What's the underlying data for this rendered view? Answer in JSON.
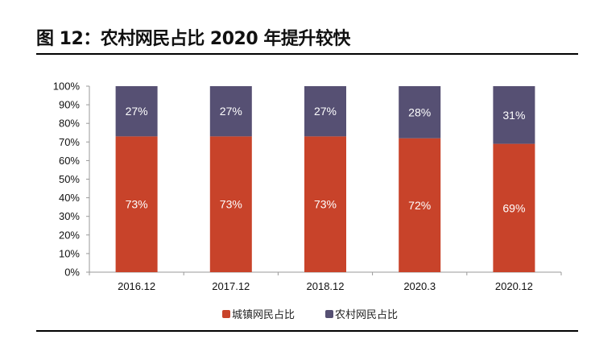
{
  "title": "图 12：农村网民占比 2020 年提升较快",
  "chart_data": {
    "type": "bar",
    "stacked": true,
    "categories": [
      "2016.12",
      "2017.12",
      "2018.12",
      "2020.3",
      "2020.12"
    ],
    "series": [
      {
        "name": "城镇网民占比",
        "values": [
          73,
          73,
          73,
          72,
          69
        ],
        "labels": [
          "73%",
          "73%",
          "73%",
          "72%",
          "69%"
        ],
        "color": "#C8432A"
      },
      {
        "name": "农村网民占比",
        "values": [
          27,
          27,
          27,
          28,
          31
        ],
        "labels": [
          "27%",
          "27%",
          "27%",
          "28%",
          "31%"
        ],
        "color": "#565073"
      }
    ],
    "ylim": [
      0,
      100
    ],
    "yticks": [
      "0%",
      "10%",
      "20%",
      "30%",
      "40%",
      "50%",
      "60%",
      "70%",
      "80%",
      "90%",
      "100%"
    ],
    "grid": false,
    "legend": "bottom"
  }
}
